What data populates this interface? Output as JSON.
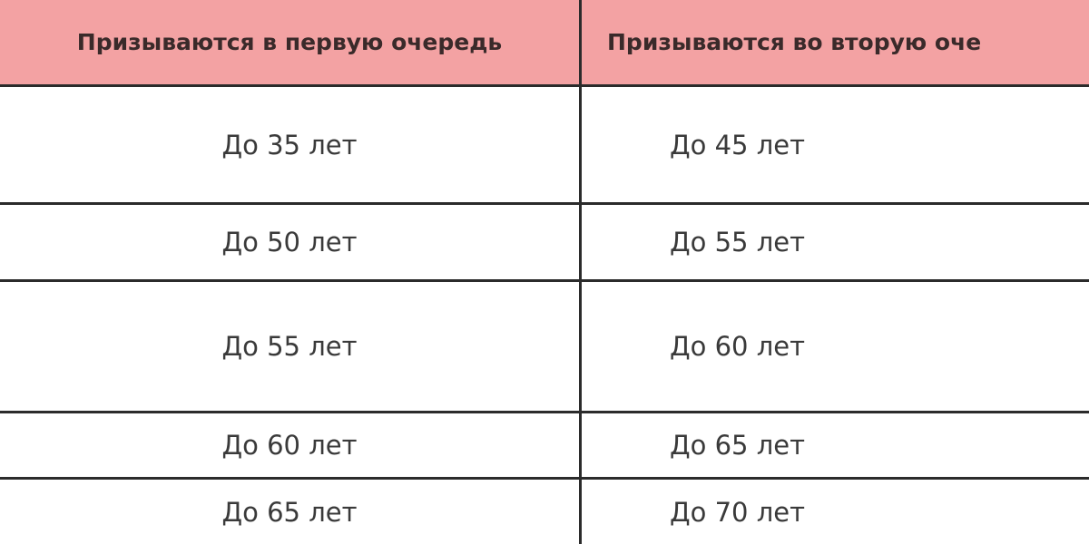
{
  "table": {
    "header": [
      "Призываются в первую очередь",
      "Призываются во вторую оче"
    ],
    "rows": [
      [
        "До 35 лет",
        "До 45 лет"
      ],
      [
        "До 50 лет",
        "До 55 лет"
      ],
      [
        "До 55 лет",
        "До 60 лет"
      ],
      [
        "До 60 лет",
        "До 65 лет"
      ],
      [
        "До 65 лет",
        "До 70 лет"
      ]
    ]
  }
}
